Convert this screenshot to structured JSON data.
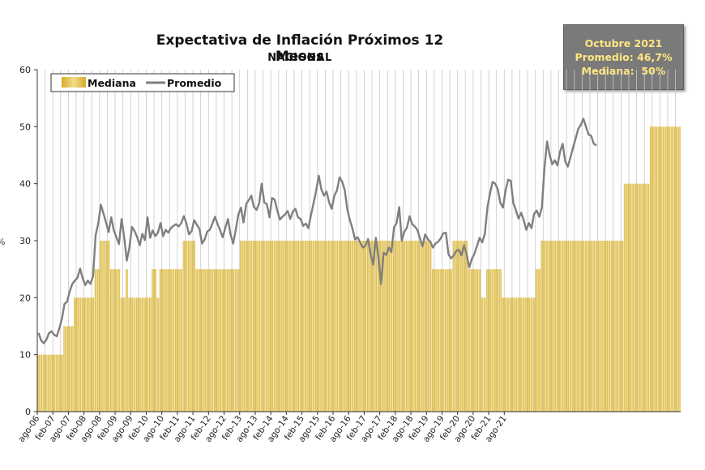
{
  "header": {
    "title": "Expectativa de Inflación Próximos 12 Meses",
    "subtitle": "NACIONAL"
  },
  "infobox": {
    "line1": "Octubre 2021",
    "line2": "Promedio: 46,7%",
    "line3": "Mediana:  50%"
  },
  "colors": {
    "bar": "#d6ad2c",
    "bar_light": "#f0dc8a",
    "line": "#7f7f7f",
    "grid": "#c8c8c8"
  },
  "chart_data": {
    "type": "bar+line",
    "title": "Expectativa de Inflación Próximos 12 Meses",
    "subtitle": "NACIONAL",
    "ylabel": "%",
    "xlabel": "",
    "ylim": [
      0,
      60
    ],
    "yticks": [
      0,
      10,
      20,
      30,
      40,
      50,
      60
    ],
    "legend": {
      "position": "top-left",
      "entries": [
        "Mediana",
        "Promedio"
      ]
    },
    "x_start": "ago-06",
    "x_end": "oct-21",
    "xtick_labels": [
      "ago-06",
      "feb-07",
      "ago-07",
      "feb-08",
      "ago-08",
      "feb-09",
      "ago-09",
      "feb-10",
      "ago-10",
      "feb-11",
      "ago-11",
      "feb-12",
      "ago-12",
      "feb-13",
      "ago-13",
      "feb-14",
      "ago-14",
      "feb-15",
      "ago-15",
      "feb-16",
      "ago-16",
      "feb-17",
      "ago-17",
      "feb-18",
      "ago-18",
      "feb-19",
      "ago-19",
      "feb-20",
      "ago-20",
      "feb-21",
      "ago-21"
    ],
    "series": [
      {
        "name": "Mediana",
        "type": "bar",
        "values": [
          10,
          10,
          10,
          10,
          10,
          10,
          10,
          10,
          10,
          10,
          15,
          15,
          15,
          15,
          20,
          20,
          20,
          20,
          20,
          20,
          20,
          20,
          25,
          25,
          30,
          30,
          30,
          30,
          25,
          25,
          25,
          25,
          20,
          20,
          25,
          20,
          20,
          20,
          20,
          20,
          20,
          20,
          20,
          20,
          25,
          25,
          20,
          25,
          25,
          25,
          25,
          25,
          25,
          25,
          25,
          25,
          30,
          30,
          30,
          30,
          30,
          25,
          25,
          25,
          25,
          25,
          25,
          25,
          25,
          25,
          25,
          25,
          25,
          25,
          25,
          25,
          25,
          25,
          30,
          30,
          30,
          30,
          30,
          30,
          30,
          30,
          30,
          30,
          30,
          30,
          30,
          30,
          30,
          30,
          30,
          30,
          30,
          30,
          30,
          30,
          30,
          30,
          30,
          30,
          30,
          30,
          30,
          30,
          30,
          30,
          30,
          30,
          30,
          30,
          30,
          30,
          30,
          30,
          30,
          30,
          30,
          30,
          30,
          30,
          30,
          30,
          30,
          30,
          30,
          30,
          30,
          30,
          30,
          30,
          30,
          30,
          30,
          30,
          30,
          30,
          30,
          30,
          30,
          30,
          30,
          30,
          30,
          30,
          30,
          30,
          30,
          30,
          25,
          25,
          25,
          25,
          25,
          25,
          25,
          25,
          30,
          30,
          30,
          30,
          30,
          30,
          25,
          25,
          25,
          25,
          25,
          20,
          20,
          25,
          25,
          25,
          25,
          25,
          25,
          20,
          20,
          20,
          20,
          20,
          20,
          20,
          20,
          20,
          20,
          20,
          20,
          20,
          25,
          25,
          30,
          30,
          30,
          30,
          30,
          30,
          30,
          30,
          30,
          30,
          30,
          30,
          30,
          30,
          30,
          30,
          30,
          30,
          30,
          30,
          30,
          30,
          30,
          30,
          30,
          30,
          30,
          30,
          30,
          30,
          30,
          30,
          40,
          40,
          40,
          40,
          40,
          40,
          40,
          40,
          40,
          40,
          50,
          50,
          50,
          50,
          50,
          50,
          50,
          50,
          50,
          50,
          50,
          50
        ]
      },
      {
        "name": "Promedio",
        "type": "line",
        "values": [
          13.8,
          12.5,
          12.0,
          12.6,
          13.8,
          14.1,
          13.5,
          13.2,
          14.6,
          16.3,
          18.9,
          19.3,
          21.1,
          22.4,
          23.0,
          23.5,
          25.1,
          23.4,
          22.2,
          23.0,
          22.4,
          23.8,
          31.0,
          33.0,
          36.3,
          34.8,
          33.2,
          31.5,
          34.1,
          31.8,
          30.6,
          29.4,
          33.8,
          30.6,
          26.5,
          28.8,
          32.4,
          31.7,
          30.6,
          29.2,
          31.2,
          30.1,
          34.1,
          30.5,
          31.8,
          30.8,
          31.4,
          33.1,
          30.8,
          31.9,
          31.4,
          32.2,
          32.6,
          32.9,
          32.5,
          33.1,
          34.3,
          33.0,
          31.1,
          31.7,
          33.6,
          32.8,
          32.1,
          29.5,
          30.2,
          31.6,
          31.9,
          33.0,
          34.2,
          32.9,
          31.8,
          30.6,
          32.3,
          33.8,
          31.1,
          29.5,
          31.9,
          34.6,
          35.8,
          33.2,
          36.4,
          37.1,
          37.9,
          35.9,
          35.4,
          36.5,
          40.0,
          36.7,
          36.4,
          34.1,
          37.5,
          37.2,
          35.3,
          33.7,
          34.2,
          34.6,
          35.2,
          33.8,
          35.1,
          35.6,
          34.1,
          33.8,
          32.6,
          33.0,
          32.2,
          34.5,
          36.6,
          38.8,
          41.4,
          39.0,
          37.9,
          38.6,
          36.7,
          35.6,
          37.9,
          38.8,
          41.1,
          40.4,
          38.9,
          35.5,
          33.6,
          32.1,
          30.2,
          30.6,
          29.6,
          28.8,
          29.1,
          30.3,
          27.6,
          25.8,
          30.5,
          27.1,
          22.4,
          27.9,
          27.5,
          28.8,
          28.0,
          32.3,
          33.1,
          35.9,
          30.0,
          31.6,
          32.3,
          34.3,
          32.9,
          32.5,
          31.9,
          30.4,
          29.0,
          31.1,
          30.3,
          29.8,
          28.8,
          29.5,
          29.8,
          30.4,
          31.3,
          31.4,
          27.6,
          26.9,
          27.4,
          28.2,
          28.4,
          27.4,
          29.2,
          27.6,
          25.3,
          26.8,
          27.7,
          29.1,
          30.5,
          29.7,
          31.2,
          35.8,
          38.3,
          40.3,
          40.0,
          39.0,
          36.6,
          35.8,
          38.8,
          40.7,
          40.5,
          36.6,
          35.3,
          33.9,
          34.9,
          33.6,
          31.9,
          33.1,
          32.2,
          34.7,
          35.3,
          34.2,
          35.8,
          42.8,
          47.4,
          45.0,
          43.4,
          44.1,
          43.2,
          45.6,
          47.0,
          43.9,
          43.0,
          44.6,
          46.3,
          47.9,
          49.6,
          50.3,
          51.4,
          50.0,
          48.6,
          48.4,
          47.0,
          46.7
        ]
      }
    ]
  }
}
